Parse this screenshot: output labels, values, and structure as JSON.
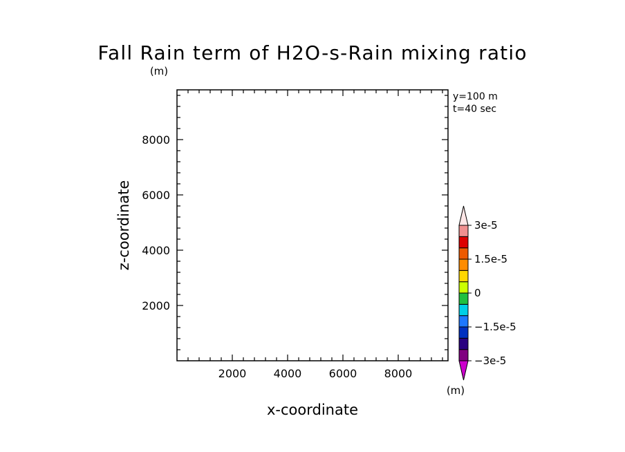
{
  "chart_data": {
    "type": "heatmap",
    "title": "Fall Rain term of H2O-s-Rain mixing ratio",
    "yunit": "(m)",
    "xunit": "(m)",
    "xlabel": "x-coordinate",
    "ylabel": "z-coordinate",
    "xlim": [
      0,
      9800
    ],
    "ylim": [
      0,
      9800
    ],
    "x_ticks": [
      2000,
      4000,
      6000,
      8000
    ],
    "y_ticks": [
      2000,
      4000,
      6000,
      8000
    ],
    "x_minor_step": 400,
    "y_minor_step": 400,
    "annotations": [
      "y=100 m",
      "t=40 sec"
    ],
    "field_values": [],
    "colorbar": {
      "levels": [
        -3e-05,
        -2.5e-05,
        -2e-05,
        -1.5e-05,
        -1e-05,
        -5e-06,
        0,
        5e-06,
        1e-05,
        1.5e-05,
        2e-05,
        2.5e-05,
        3e-05
      ],
      "labels": [
        {
          "value": 3e-05,
          "text": "3e-5"
        },
        {
          "value": 1.5e-05,
          "text": "1.5e-5"
        },
        {
          "value": 0,
          "text": "0"
        },
        {
          "value": -1.5e-05,
          "text": "−1.5e-5"
        },
        {
          "value": -3e-05,
          "text": "−3e-5"
        }
      ],
      "low_color": "#cc00cc",
      "high_color": "#ffe6e6",
      "colors": [
        "#800080",
        "#2a0080",
        "#0030c0",
        "#1e78ff",
        "#00cfe6",
        "#20c040",
        "#ccff00",
        "#ffd700",
        "#ff8c00",
        "#ee5a00",
        "#dd0000",
        "#f09090"
      ]
    }
  }
}
